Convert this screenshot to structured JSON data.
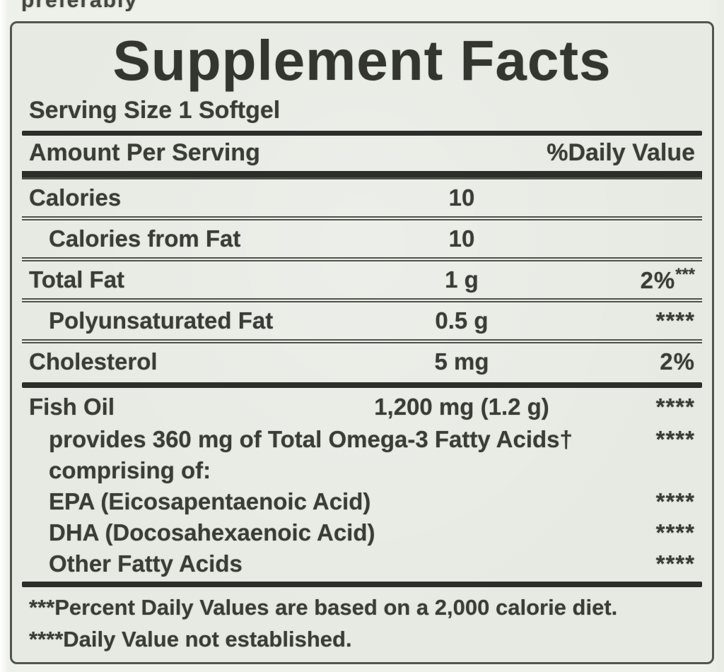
{
  "colors": {
    "page-bg": "#eef0ea",
    "label-bg": "#e6eae2",
    "text": "#3b3c36",
    "line": "#50524a",
    "bar": "#2d2e29",
    "border": "#53554d"
  },
  "page": {
    "clipped_top_text": "preferably"
  },
  "label": {
    "title": "Supplement Facts",
    "serving_size": "Serving Size 1 Softgel",
    "header": {
      "amount_col": "Amount Per Serving",
      "dv_col": "%Daily Value"
    },
    "rows": [
      {
        "name": "Calories",
        "amount": "10",
        "dv": ""
      },
      {
        "name": "Calories from Fat",
        "amount": "10",
        "dv": ""
      },
      {
        "name": "Total Fat",
        "amount": "1 g",
        "dv": "2%",
        "dv_sup": "***"
      },
      {
        "name": "Polyunsaturated Fat",
        "amount": "0.5 g",
        "dv": "****"
      },
      {
        "name": "Cholesterol",
        "amount": "5 mg",
        "dv": "2%"
      },
      {
        "name": "Fish Oil",
        "amount": "1,200 mg (1.2 g)",
        "dv": "****"
      },
      {
        "name": "provides 360 mg of Total Omega-3 Fatty Acids†",
        "dv": "****"
      },
      {
        "name": "comprising of:",
        "dv": ""
      },
      {
        "name": "EPA (Eicosapentaenoic Acid)",
        "dv": "****"
      },
      {
        "name": "DHA (Docosahexaenoic Acid)",
        "dv": "****"
      },
      {
        "name": "Other Fatty Acids",
        "dv": "****"
      }
    ],
    "footnotes": [
      "***Percent Daily Values are based on a 2,000 calorie diet.",
      "****Daily Value not established."
    ]
  }
}
